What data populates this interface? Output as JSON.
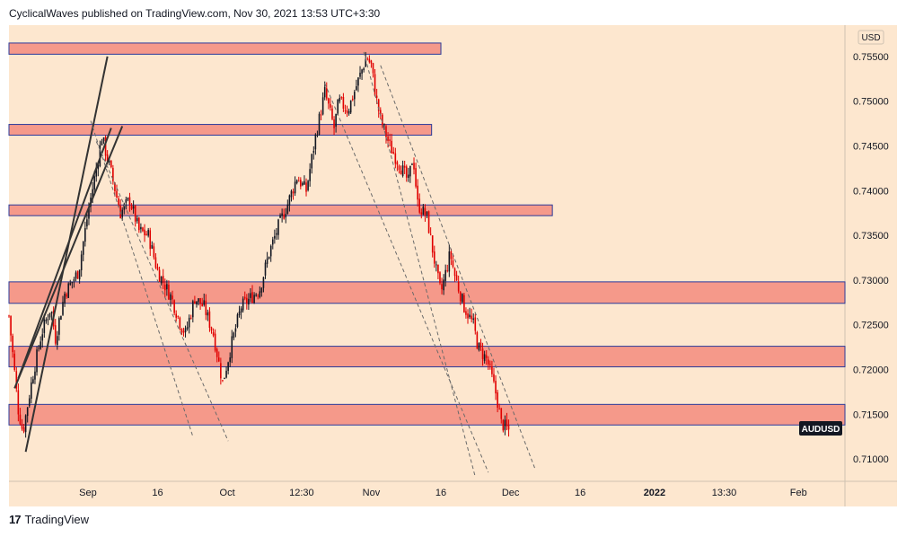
{
  "header": {
    "published_text": "CyclicalWaves published on TradingView.com, Nov 30, 2021 13:53 UTC+3:30"
  },
  "footer": {
    "brand_label": "TradingView",
    "logo_glyph": "17"
  },
  "colors": {
    "background": "#fde7cf",
    "zone_fill": "#f5998a",
    "zone_border": "#2a3a9a",
    "candle_up": "#131722",
    "candle_down": "#e00000",
    "trendline": "#333333",
    "channel": "#6a6a6a",
    "badge_bg": "#131722",
    "badge_text": "#ffffff"
  },
  "chart_data": {
    "type": "candlestick",
    "symbol_badge": "AUDUSD",
    "currency": "USD",
    "x_time_labels": [
      {
        "label": "Sep",
        "t": 17
      },
      {
        "label": "16",
        "t": 32
      },
      {
        "label": "Oct",
        "t": 47
      },
      {
        "label": "12:30",
        "t": 63
      },
      {
        "label": "Nov",
        "t": 78
      },
      {
        "label": "16",
        "t": 93
      },
      {
        "label": "Dec",
        "t": 108
      },
      {
        "label": "16",
        "t": 123
      },
      {
        "label": "2022",
        "t": 139
      },
      {
        "label": "13:30",
        "t": 154
      },
      {
        "label": "Feb",
        "t": 170
      }
    ],
    "y_axis": {
      "ylim": [
        0.7075,
        0.7585
      ],
      "ticks": [
        "0.71000",
        "0.71500",
        "0.72000",
        "0.72500",
        "0.73000",
        "0.73500",
        "0.74000",
        "0.74500",
        "0.75000",
        "0.75500"
      ]
    },
    "x_range": [
      0,
      180
    ],
    "last_bar_t": 108,
    "close_path": [
      [
        0,
        0.726
      ],
      [
        2,
        0.7155
      ],
      [
        3,
        0.713
      ],
      [
        5,
        0.719
      ],
      [
        7,
        0.724
      ],
      [
        9,
        0.727
      ],
      [
        10,
        0.7235
      ],
      [
        12,
        0.7285
      ],
      [
        15,
        0.731
      ],
      [
        17,
        0.7375
      ],
      [
        19,
        0.743
      ],
      [
        20,
        0.746
      ],
      [
        22,
        0.742
      ],
      [
        24,
        0.7375
      ],
      [
        26,
        0.739
      ],
      [
        28,
        0.7355
      ],
      [
        30,
        0.735
      ],
      [
        32,
        0.731
      ],
      [
        35,
        0.728
      ],
      [
        37,
        0.725
      ],
      [
        38,
        0.724
      ],
      [
        40,
        0.728
      ],
      [
        42,
        0.727
      ],
      [
        44,
        0.724
      ],
      [
        46,
        0.7185
      ],
      [
        48,
        0.723
      ],
      [
        50,
        0.727
      ],
      [
        52,
        0.728
      ],
      [
        54,
        0.729
      ],
      [
        56,
        0.733
      ],
      [
        58,
        0.736
      ],
      [
        60,
        0.7385
      ],
      [
        62,
        0.7415
      ],
      [
        64,
        0.74
      ],
      [
        66,
        0.746
      ],
      [
        68,
        0.751
      ],
      [
        70,
        0.747
      ],
      [
        71,
        0.75
      ],
      [
        73,
        0.749
      ],
      [
        75,
        0.752
      ],
      [
        77,
        0.755
      ],
      [
        78,
        0.754
      ],
      [
        79,
        0.7505
      ],
      [
        80,
        0.748
      ],
      [
        82,
        0.745
      ],
      [
        84,
        0.743
      ],
      [
        86,
        0.741
      ],
      [
        87,
        0.744
      ],
      [
        88,
        0.7385
      ],
      [
        90,
        0.737
      ],
      [
        92,
        0.731
      ],
      [
        93,
        0.7285
      ],
      [
        95,
        0.733
      ],
      [
        96,
        0.7305
      ],
      [
        98,
        0.727
      ],
      [
        100,
        0.725
      ],
      [
        101,
        0.7225
      ],
      [
        103,
        0.721
      ],
      [
        104,
        0.719
      ],
      [
        105,
        0.717
      ],
      [
        106,
        0.714
      ],
      [
        107,
        0.7135
      ],
      [
        108,
        0.713
      ]
    ],
    "zones": [
      {
        "low": 0.75525,
        "high": 0.7565,
        "t_end": 93
      },
      {
        "low": 0.7462,
        "high": 0.7474,
        "t_end": 91
      },
      {
        "low": 0.7372,
        "high": 0.7384,
        "t_end": 117
      },
      {
        "low": 0.7274,
        "high": 0.7298,
        "t_end": 180
      },
      {
        "low": 0.7203,
        "high": 0.7226,
        "t_end": 180
      },
      {
        "low": 0.7138,
        "high": 0.7161,
        "t_end": 180
      }
    ],
    "trendlines": [
      {
        "t1": 3.6,
        "y1": 0.7108,
        "t2": 21.2,
        "y2": 0.755
      },
      {
        "t1": 1.2,
        "y1": 0.7179,
        "t2": 24.4,
        "y2": 0.7472
      },
      {
        "t1": 2.0,
        "y1": 0.719,
        "t2": 22.0,
        "y2": 0.747
      }
    ],
    "channels": [
      {
        "t1": 17.6,
        "y1": 0.7478,
        "t2": 39.6,
        "y2": 0.7125
      },
      {
        "t1": 18.8,
        "y1": 0.7455,
        "t2": 47.2,
        "y2": 0.712
      },
      {
        "t1": 76.4,
        "y1": 0.7555,
        "t2": 100.4,
        "y2": 0.708
      },
      {
        "t1": 68.0,
        "y1": 0.752,
        "t2": 103.2,
        "y2": 0.7085
      },
      {
        "t1": 80.0,
        "y1": 0.754,
        "t2": 113.2,
        "y2": 0.709
      }
    ]
  }
}
